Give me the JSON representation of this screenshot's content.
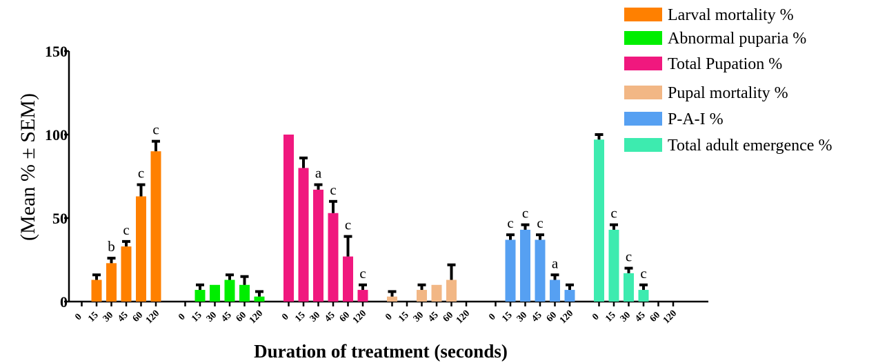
{
  "chart_data": {
    "type": "bar",
    "ylabel": "(Mean % ± SEM)",
    "xlabel": "Duration of treatment (seconds)",
    "ylim": [
      0,
      150
    ],
    "yticks": [
      "0",
      "50",
      "100",
      "150"
    ],
    "grid": false,
    "legend_position": "top-right",
    "series": [
      {
        "name": "Larval mortality %",
        "color": "#FF8000",
        "categories": [
          "0",
          "15",
          "30",
          "45",
          "60",
          "120"
        ],
        "values": [
          0,
          13,
          23,
          33,
          63,
          90
        ],
        "sem": [
          0,
          3,
          3,
          3,
          7,
          6
        ],
        "letters": [
          "",
          "",
          "b",
          "c",
          "c",
          "c"
        ]
      },
      {
        "name": "Abnormal puparia %",
        "color": "#00EE00",
        "categories": [
          "0",
          "15",
          "30",
          "45",
          "60",
          "120"
        ],
        "values": [
          0,
          7,
          10,
          13,
          10,
          3
        ],
        "sem": [
          0,
          3,
          0,
          3,
          5,
          3
        ],
        "letters": [
          "",
          "",
          "",
          "",
          "",
          ""
        ]
      },
      {
        "name": "Total Pupation %",
        "color": "#F0187E",
        "categories": [
          "0",
          "15",
          "30",
          "45",
          "60",
          "120"
        ],
        "values": [
          100,
          80,
          67,
          53,
          27,
          7
        ],
        "sem": [
          0,
          6,
          3,
          7,
          12,
          3
        ],
        "letters": [
          "",
          "",
          "a",
          "c",
          "c",
          "c"
        ]
      },
      {
        "name": "Pupal mortality %",
        "color": "#F2B785",
        "categories": [
          "0",
          "15",
          "30",
          "45",
          "60",
          "120"
        ],
        "values": [
          3,
          0,
          7,
          10,
          13,
          0
        ],
        "sem": [
          3,
          0,
          3,
          0,
          9,
          0
        ],
        "letters": [
          "",
          "",
          "",
          "",
          "",
          ""
        ]
      },
      {
        "name": "P-A-I %",
        "color": "#56A0F2",
        "categories": [
          "0",
          "15",
          "30",
          "45",
          "60",
          "120"
        ],
        "values": [
          0,
          37,
          43,
          37,
          13,
          7
        ],
        "sem": [
          0,
          3,
          3,
          3,
          3,
          3
        ],
        "letters": [
          "",
          "c",
          "c",
          "c",
          "a",
          ""
        ]
      },
      {
        "name": "Total adult emergence %",
        "color": "#3DEBAF",
        "categories": [
          "0",
          "15",
          "30",
          "45",
          "60",
          "120"
        ],
        "values": [
          97,
          43,
          17,
          7,
          0,
          0
        ],
        "sem": [
          3,
          3,
          3,
          3,
          0,
          0
        ],
        "letters": [
          "",
          "c",
          "c",
          "c",
          "",
          ""
        ]
      }
    ]
  }
}
